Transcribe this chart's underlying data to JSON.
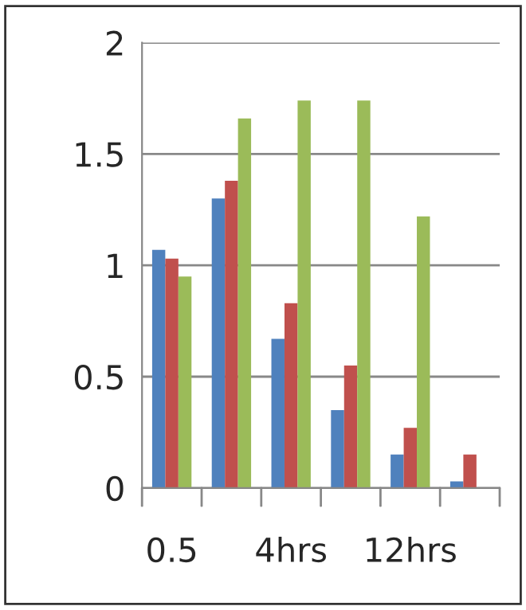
{
  "chart_data": {
    "type": "bar",
    "categories": [
      "0.5",
      null,
      "4hrs",
      null,
      "12hrs",
      null
    ],
    "series": [
      {
        "color": "#4f81bd",
        "values": [
          1.07,
          1.3,
          0.67,
          0.35,
          0.15,
          0.03
        ]
      },
      {
        "color": "#c0504d",
        "values": [
          1.03,
          1.38,
          0.83,
          0.55,
          0.27,
          0.15
        ]
      },
      {
        "color": "#9bbb59",
        "values": [
          0.95,
          1.66,
          1.74,
          1.74,
          1.22,
          0.0
        ]
      }
    ],
    "ylim": [
      0,
      2
    ],
    "yticks": [
      0,
      0.5,
      1,
      1.5,
      2
    ],
    "grid": "y"
  }
}
